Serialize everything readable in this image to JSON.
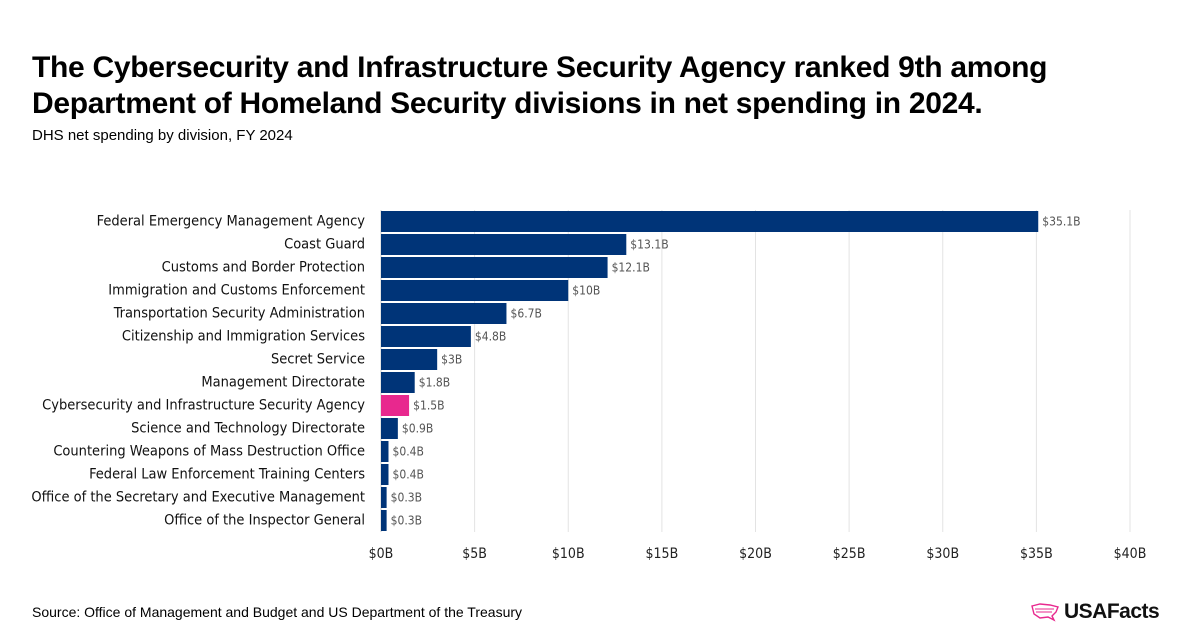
{
  "title": "The Cybersecurity and Infrastructure Security Agency ranked 9th among Department of Homeland Security divisions in net spending in 2024.",
  "subtitle": "DHS net spending by division, FY 2024",
  "source": "Source: Office of Management and Budget and US Department of the Treasury",
  "logo": "USAFacts",
  "colors": {
    "bar": "#003478",
    "highlight": "#e8288e",
    "grid": "#e3e3e3",
    "label": "#555555"
  },
  "chart_data": {
    "type": "bar",
    "orientation": "horizontal",
    "categories": [
      "Federal Emergency Management Agency",
      "Coast Guard",
      "Customs and Border Protection",
      "Immigration and Customs Enforcement",
      "Transportation Security Administration",
      "Citizenship and Immigration Services",
      "Secret Service",
      "Management Directorate",
      "Cybersecurity and Infrastructure Security Agency",
      "Science and Technology Directorate",
      "Countering Weapons of Mass Destruction Office",
      "Federal Law Enforcement Training Centers",
      "Office of the Secretary and Executive Management",
      "Office of the Inspector General"
    ],
    "values": [
      35.1,
      13.1,
      12.1,
      10,
      6.7,
      4.8,
      3,
      1.8,
      1.5,
      0.9,
      0.4,
      0.4,
      0.3,
      0.3
    ],
    "data_labels": [
      "$35.1B",
      "$13.1B",
      "$12.1B",
      "$10B",
      "$6.7B",
      "$4.8B",
      "$3B",
      "$1.8B",
      "$1.5B",
      "$0.9B",
      "$0.4B",
      "$0.4B",
      "$0.3B",
      "$0.3B"
    ],
    "highlight": "Cybersecurity and Infrastructure Security Agency",
    "xlim": [
      0,
      40
    ],
    "xticks": [
      0,
      5,
      10,
      15,
      20,
      25,
      30,
      35,
      40
    ],
    "xtick_labels": [
      "$0B",
      "$5B",
      "$10B",
      "$15B",
      "$20B",
      "$25B",
      "$30B",
      "$35B",
      "$40B"
    ],
    "grid": true
  }
}
